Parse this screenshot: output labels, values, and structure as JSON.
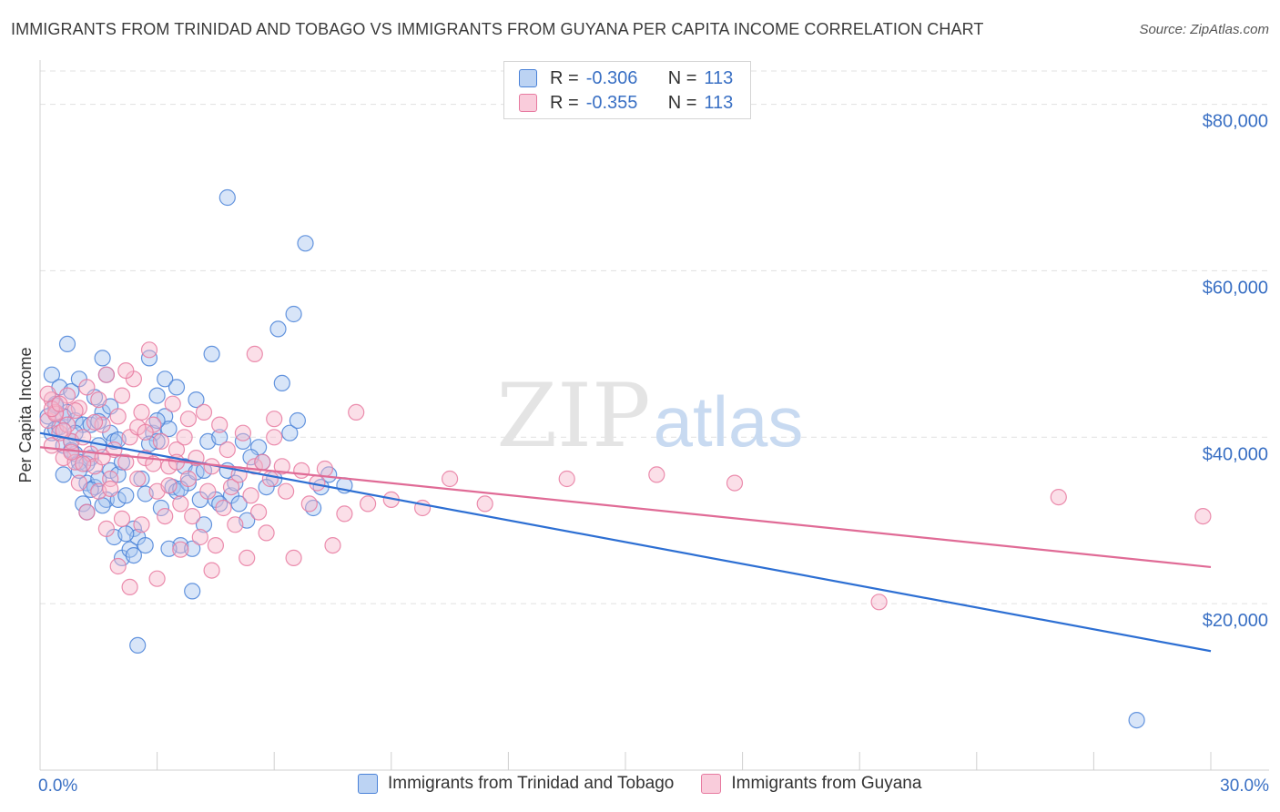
{
  "title": "IMMIGRANTS FROM TRINIDAD AND TOBAGO VS IMMIGRANTS FROM GUYANA PER CAPITA INCOME CORRELATION CHART",
  "source": "Source: ZipAtlas.com",
  "watermark": {
    "zip": "ZIP",
    "atlas": "atlas"
  },
  "colors": {
    "blue_fill": "#a9c6ef",
    "blue_stroke": "#4a82d8",
    "blue_line": "#2d6fd3",
    "pink_fill": "#f7b9cd",
    "pink_stroke": "#e77aa0",
    "pink_line": "#e06b96",
    "axis_text": "#3a70c4",
    "grid": "#e1e1e1"
  },
  "legend_top": {
    "rows": [
      {
        "r_label": "R =",
        "r_value": "-0.306",
        "n_label": "N =",
        "n_value": "113",
        "color": "blue"
      },
      {
        "r_label": "R =",
        "r_value": "-0.355",
        "n_label": "N =",
        "n_value": "113",
        "color": "pink"
      }
    ]
  },
  "chart_data": {
    "type": "scatter",
    "title": "IMMIGRANTS FROM TRINIDAD AND TOBAGO VS IMMIGRANTS FROM GUYANA PER CAPITA INCOME CORRELATION CHART",
    "xlabel": "",
    "ylabel": "Per Capita Income",
    "xlim": [
      0,
      30
    ],
    "ylim": [
      0,
      84000
    ],
    "x_tick_labels": [
      "0.0%",
      "30.0%"
    ],
    "y_ticks": [
      20000,
      40000,
      60000,
      80000
    ],
    "y_tick_labels": [
      "$20,000",
      "$40,000",
      "$60,000",
      "$80,000"
    ],
    "grid": true,
    "legend_position": "bottom",
    "series": [
      {
        "name": "Immigrants from Trinidad and Tobago",
        "color": "blue",
        "trend": {
          "x": [
            0,
            30
          ],
          "y": [
            40500,
            14300
          ]
        },
        "points": [
          [
            0.2,
            42500
          ],
          [
            0.3,
            47500
          ],
          [
            0.3,
            40500
          ],
          [
            0.4,
            44000
          ],
          [
            0.4,
            41000
          ],
          [
            0.5,
            46000
          ],
          [
            0.6,
            39000
          ],
          [
            0.6,
            35500
          ],
          [
            0.7,
            51200
          ],
          [
            0.7,
            43000
          ],
          [
            0.8,
            39500
          ],
          [
            0.8,
            45500
          ],
          [
            0.9,
            38000
          ],
          [
            0.9,
            42000
          ],
          [
            1.0,
            47000
          ],
          [
            1.0,
            37000
          ],
          [
            1.1,
            41500
          ],
          [
            1.1,
            32000
          ],
          [
            1.2,
            31000
          ],
          [
            1.2,
            34500
          ],
          [
            1.3,
            37500
          ],
          [
            1.3,
            41500
          ],
          [
            1.4,
            44800
          ],
          [
            1.4,
            34000
          ],
          [
            1.5,
            39000
          ],
          [
            1.5,
            35000
          ],
          [
            1.6,
            49500
          ],
          [
            1.6,
            43000
          ],
          [
            1.7,
            47500
          ],
          [
            1.7,
            32500
          ],
          [
            1.8,
            40500
          ],
          [
            1.8,
            36000
          ],
          [
            1.9,
            39500
          ],
          [
            1.9,
            28000
          ],
          [
            2.0,
            32500
          ],
          [
            2.0,
            35500
          ],
          [
            2.1,
            25500
          ],
          [
            2.1,
            37000
          ],
          [
            2.2,
            33000
          ],
          [
            2.3,
            26500
          ],
          [
            2.4,
            29000
          ],
          [
            2.5,
            28000
          ],
          [
            2.5,
            15000
          ],
          [
            2.6,
            35000
          ],
          [
            2.7,
            27000
          ],
          [
            2.8,
            49500
          ],
          [
            2.9,
            40500
          ],
          [
            3.0,
            45000
          ],
          [
            3.0,
            39500
          ],
          [
            3.1,
            31500
          ],
          [
            3.2,
            47000
          ],
          [
            3.2,
            42500
          ],
          [
            3.3,
            41000
          ],
          [
            3.4,
            34000
          ],
          [
            3.5,
            46000
          ],
          [
            3.5,
            33500
          ],
          [
            3.6,
            27000
          ],
          [
            3.7,
            36500
          ],
          [
            3.8,
            34500
          ],
          [
            3.9,
            21500
          ],
          [
            4.0,
            44500
          ],
          [
            4.0,
            35800
          ],
          [
            4.1,
            32500
          ],
          [
            4.2,
            29500
          ],
          [
            4.3,
            39500
          ],
          [
            4.4,
            50000
          ],
          [
            4.5,
            32500
          ],
          [
            4.6,
            40000
          ],
          [
            4.8,
            36000
          ],
          [
            4.9,
            33000
          ],
          [
            5.0,
            34500
          ],
          [
            5.1,
            32000
          ],
          [
            5.2,
            39500
          ],
          [
            5.3,
            30000
          ],
          [
            5.6,
            38800
          ],
          [
            5.7,
            37000
          ],
          [
            6.0,
            35000
          ],
          [
            6.1,
            53000
          ],
          [
            6.2,
            46500
          ],
          [
            6.4,
            40500
          ],
          [
            6.5,
            54800
          ],
          [
            7.0,
            31500
          ],
          [
            7.2,
            34000
          ],
          [
            7.4,
            35500
          ],
          [
            4.8,
            68800
          ],
          [
            6.8,
            63300
          ],
          [
            0.6,
            42500
          ],
          [
            0.9,
            40500
          ],
          [
            1.2,
            36800
          ],
          [
            1.6,
            31800
          ],
          [
            2.2,
            28400
          ],
          [
            2.7,
            33200
          ],
          [
            3.3,
            26600
          ],
          [
            3.9,
            26600
          ],
          [
            0.4,
            43800
          ],
          [
            0.5,
            41200
          ],
          [
            0.8,
            38400
          ],
          [
            1.0,
            36000
          ],
          [
            1.3,
            33700
          ],
          [
            1.5,
            41900
          ],
          [
            1.8,
            43700
          ],
          [
            2.0,
            39700
          ],
          [
            2.4,
            25800
          ],
          [
            2.8,
            39200
          ],
          [
            3.0,
            42000
          ],
          [
            3.6,
            33800
          ],
          [
            4.2,
            36000
          ],
          [
            4.6,
            32000
          ],
          [
            5.4,
            37600
          ],
          [
            5.8,
            34000
          ],
          [
            6.6,
            42000
          ],
          [
            7.8,
            34200
          ],
          [
            28.1,
            6000
          ]
        ]
      },
      {
        "name": "Immigrants from Guyana",
        "color": "pink",
        "trend": {
          "x": [
            0,
            30
          ],
          "y": [
            38800,
            24400
          ]
        },
        "points": [
          [
            0.2,
            42000
          ],
          [
            0.3,
            44500
          ],
          [
            0.3,
            39000
          ],
          [
            0.4,
            43000
          ],
          [
            0.5,
            40500
          ],
          [
            0.6,
            37500
          ],
          [
            0.7,
            45000
          ],
          [
            0.7,
            41500
          ],
          [
            0.8,
            39500
          ],
          [
            0.9,
            37000
          ],
          [
            1.0,
            43500
          ],
          [
            1.0,
            34500
          ],
          [
            1.1,
            40000
          ],
          [
            1.2,
            31000
          ],
          [
            1.3,
            38000
          ],
          [
            1.4,
            36500
          ],
          [
            1.5,
            33500
          ],
          [
            1.5,
            44500
          ],
          [
            1.6,
            41500
          ],
          [
            1.7,
            29000
          ],
          [
            1.7,
            47500
          ],
          [
            1.8,
            35000
          ],
          [
            1.9,
            38500
          ],
          [
            2.0,
            42500
          ],
          [
            2.0,
            24500
          ],
          [
            2.1,
            45000
          ],
          [
            2.2,
            37000
          ],
          [
            2.3,
            40000
          ],
          [
            2.3,
            22000
          ],
          [
            2.4,
            47000
          ],
          [
            2.5,
            35000
          ],
          [
            2.6,
            43000
          ],
          [
            2.6,
            29500
          ],
          [
            2.7,
            37500
          ],
          [
            2.8,
            50500
          ],
          [
            2.9,
            41500
          ],
          [
            3.0,
            33500
          ],
          [
            3.0,
            23000
          ],
          [
            3.1,
            39500
          ],
          [
            3.2,
            30500
          ],
          [
            3.3,
            36500
          ],
          [
            3.4,
            44000
          ],
          [
            3.5,
            38500
          ],
          [
            3.6,
            32000
          ],
          [
            3.6,
            26500
          ],
          [
            3.7,
            40000
          ],
          [
            3.8,
            35000
          ],
          [
            3.9,
            30500
          ],
          [
            4.0,
            37500
          ],
          [
            4.1,
            28000
          ],
          [
            4.2,
            43000
          ],
          [
            4.3,
            33500
          ],
          [
            4.4,
            36500
          ],
          [
            4.5,
            27000
          ],
          [
            4.6,
            41500
          ],
          [
            4.7,
            31500
          ],
          [
            4.8,
            38500
          ],
          [
            4.9,
            34000
          ],
          [
            5.0,
            29500
          ],
          [
            5.1,
            35500
          ],
          [
            5.2,
            40500
          ],
          [
            5.3,
            25500
          ],
          [
            5.4,
            33000
          ],
          [
            5.5,
            36500
          ],
          [
            5.6,
            31000
          ],
          [
            5.7,
            37000
          ],
          [
            5.8,
            28500
          ],
          [
            5.9,
            35000
          ],
          [
            6.0,
            40000
          ],
          [
            6.2,
            36500
          ],
          [
            6.3,
            33500
          ],
          [
            6.5,
            25500
          ],
          [
            6.7,
            36000
          ],
          [
            6.9,
            32000
          ],
          [
            7.1,
            34500
          ],
          [
            7.3,
            36200
          ],
          [
            7.5,
            27000
          ],
          [
            7.8,
            30800
          ],
          [
            8.1,
            43000
          ],
          [
            8.4,
            32000
          ],
          [
            9.0,
            32500
          ],
          [
            9.8,
            31500
          ],
          [
            10.5,
            35000
          ],
          [
            11.4,
            32000
          ],
          [
            13.5,
            35000
          ],
          [
            15.8,
            35500
          ],
          [
            17.8,
            34500
          ],
          [
            21.5,
            20200
          ],
          [
            26.1,
            32800
          ],
          [
            29.8,
            30500
          ],
          [
            0.2,
            45200
          ],
          [
            0.4,
            42800
          ],
          [
            0.6,
            40800
          ],
          [
            0.9,
            43200
          ],
          [
            1.1,
            36800
          ],
          [
            1.4,
            41800
          ],
          [
            1.8,
            33800
          ],
          [
            2.1,
            30200
          ],
          [
            2.5,
            41200
          ],
          [
            2.9,
            36800
          ],
          [
            3.3,
            34200
          ],
          [
            3.8,
            42200
          ],
          [
            4.4,
            24000
          ],
          [
            5.5,
            50000
          ],
          [
            6.0,
            42200
          ],
          [
            0.3,
            43400
          ],
          [
            0.5,
            44000
          ],
          [
            0.8,
            38200
          ],
          [
            1.2,
            46000
          ],
          [
            1.6,
            37600
          ],
          [
            2.2,
            48000
          ],
          [
            2.7,
            40600
          ],
          [
            3.5,
            37000
          ]
        ]
      }
    ]
  },
  "legend_bottom": [
    {
      "label": "Immigrants from Trinidad and Tobago",
      "color": "blue"
    },
    {
      "label": "Immigrants from Guyana",
      "color": "pink"
    }
  ]
}
